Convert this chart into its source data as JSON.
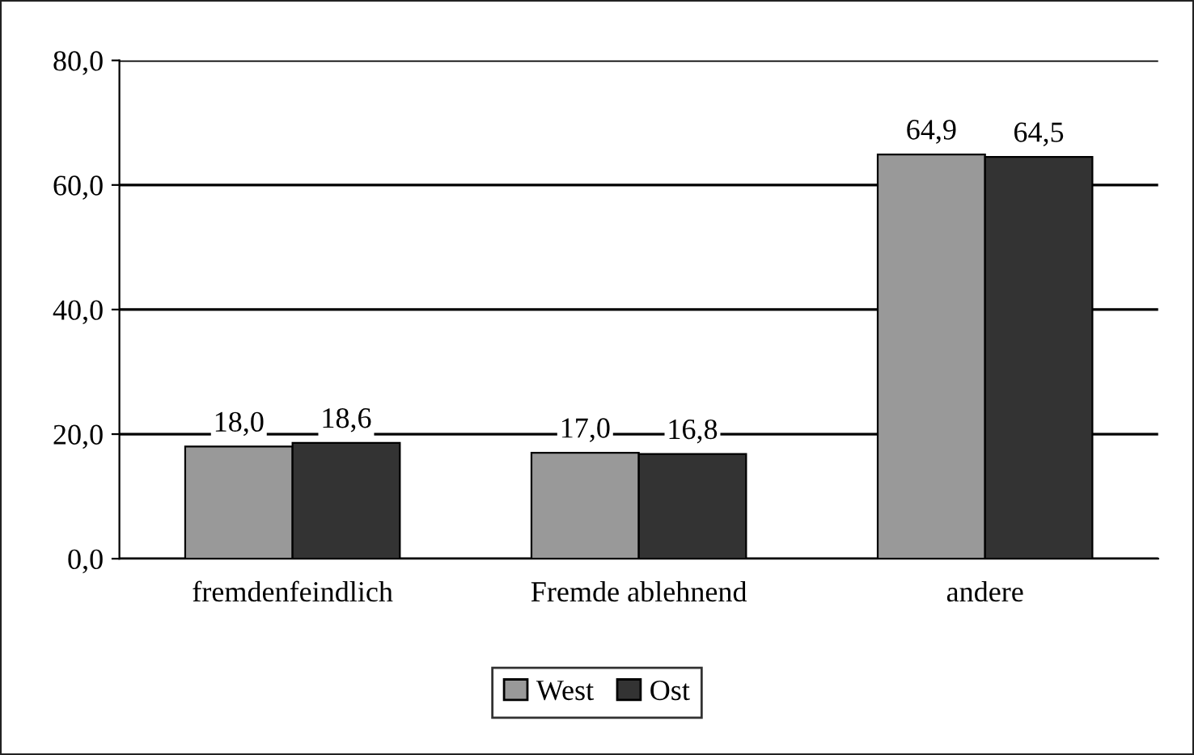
{
  "chart_data": {
    "type": "bar",
    "categories": [
      "fremdenfeindlich",
      "Fremde ablehnend",
      "andere"
    ],
    "series": [
      {
        "name": "West",
        "color": "#999999",
        "values": [
          18.0,
          17.0,
          64.9
        ],
        "value_labels": [
          "18,0",
          "17,0",
          "64,9"
        ]
      },
      {
        "name": "Ost",
        "color": "#333333",
        "values": [
          18.6,
          16.8,
          64.5
        ],
        "value_labels": [
          "18,6",
          "16,8",
          "64,5"
        ]
      }
    ],
    "ylim": [
      0,
      80
    ],
    "yticks": [
      {
        "value": 0,
        "label": "0,0"
      },
      {
        "value": 20,
        "label": "20,0"
      },
      {
        "value": 40,
        "label": "40,0"
      },
      {
        "value": 60,
        "label": "60,0"
      },
      {
        "value": 80,
        "label": "80,0"
      }
    ],
    "grid": "y",
    "legend": "bottom"
  }
}
